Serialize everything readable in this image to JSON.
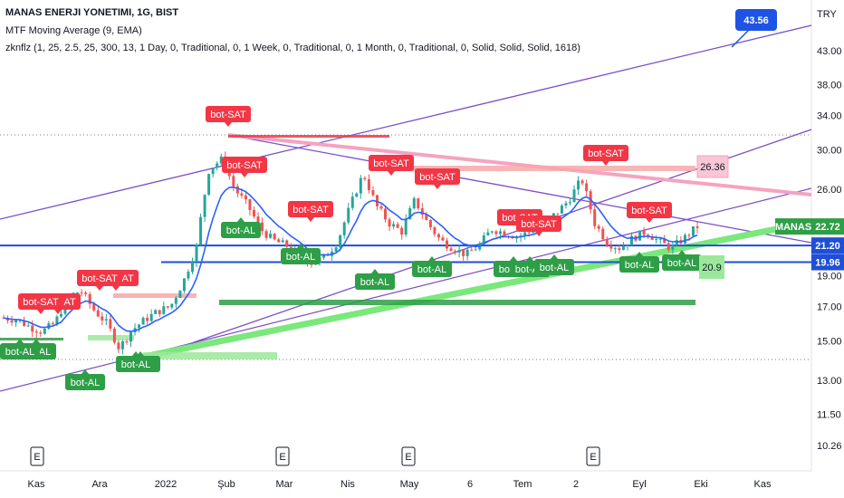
{
  "header": {
    "symbol_line": "MANAS ENERJI YONETIMI, 1G, BIST",
    "indicator_1": "MTF Moving Average (9, EMA)",
    "indicator_2": "zknflz (1, 25, 2.5, 25, 300, 13, 1 Day, 0, Traditional, 0, 1 Week, 0, Traditional, 0, 1 Month, 0, Traditional, 0, Solid, Solid, Solid, 1618)"
  },
  "colors": {
    "sell": "#f23645",
    "buy": "#2e9e47",
    "hline": "#1e4fd6",
    "channel": "#7b4fc9",
    "support": "#7be87b",
    "resist": "#f5a3c0",
    "ema": "#2962ff",
    "candle_up": "#26a69a",
    "candle_down": "#ef5350",
    "callout": "#1e53e5"
  },
  "chart_data": {
    "type": "candlestick",
    "currency_label": "TRY",
    "y_scale": "log",
    "ylim": [
      9.9,
      49.0
    ],
    "y_ticks": [
      10.26,
      11.5,
      13.0,
      15.0,
      17.0,
      19.0,
      26.0,
      30.0,
      34.0,
      38.0,
      43.0
    ],
    "x_ticks": [
      "Kas",
      "Ara",
      "2022",
      "Şub",
      "Mar",
      "Nis",
      "May",
      "6",
      "Tem",
      "2",
      "Eyl",
      "Eki",
      "Kas"
    ],
    "price_labels": [
      {
        "text": "MANAS",
        "value": 22.72
      },
      {
        "text": "22.72",
        "value": 22.72
      },
      {
        "text": "21.20",
        "value": 21.2
      },
      {
        "text": "19.96",
        "value": 19.96
      }
    ],
    "callout": "43.56",
    "zone_labels": [
      "26.36",
      "20.9"
    ],
    "earnings_markers": [
      "E",
      "E",
      "E",
      "E"
    ],
    "signals": {
      "sell_label": "bot-SAT",
      "buy_label": "bot-AL",
      "sell_count": 13,
      "buy_count": 14
    },
    "series": [
      {
        "name": "MANAS",
        "kind": "price",
        "approx_path": [
          16.3,
          16.2,
          15.8,
          15.5,
          16.0,
          17.6,
          18.0,
          16.8,
          16.0,
          14.6,
          15.6,
          16.2,
          16.7,
          17.0,
          18.6,
          21.0,
          28.0,
          29.0,
          26.0,
          24.5,
          22.5,
          21.6,
          21.2,
          20.4,
          19.9,
          20.3,
          21.5,
          24.5,
          27.5,
          24.5,
          23.0,
          22.3,
          25.0,
          23.0,
          21.6,
          21.0,
          20.5,
          21.2,
          22.5,
          22.2,
          21.9,
          22.3,
          23.0,
          23.8,
          25.0,
          27.0,
          23.0,
          21.4,
          21.0,
          21.8,
          22.3,
          21.5,
          21.0,
          21.8,
          22.72
        ]
      },
      {
        "name": "EMA 9",
        "kind": "ema"
      }
    ],
    "levels": [
      21.2,
      19.96
    ]
  }
}
